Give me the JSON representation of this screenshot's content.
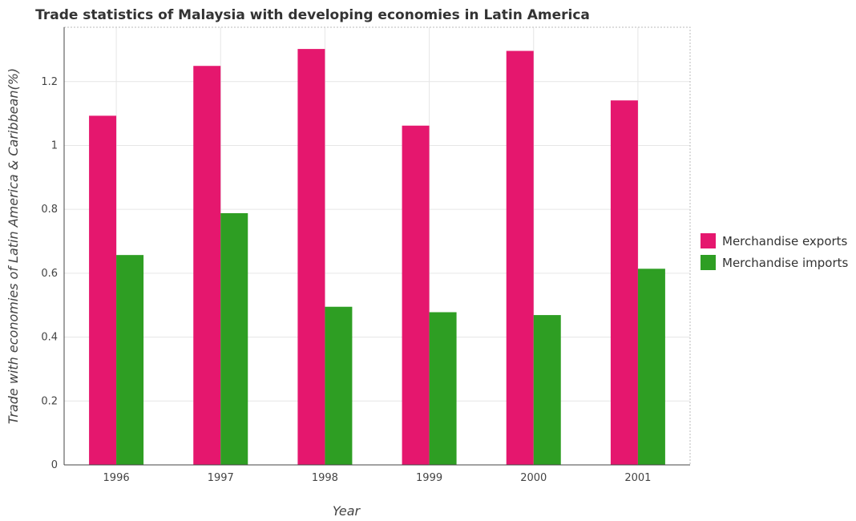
{
  "chart_data": {
    "type": "bar",
    "title": "Trade statistics of Malaysia with developing economies in Latin America",
    "xlabel": "Year",
    "ylabel": "Trade with economies of Latin America & Caribbean(%)",
    "categories": [
      "1996",
      "1997",
      "1998",
      "1999",
      "2000",
      "2001"
    ],
    "series": [
      {
        "name": "Merchandise exports",
        "color": "#e5176e",
        "values": [
          1.093,
          1.249,
          1.302,
          1.062,
          1.296,
          1.141
        ]
      },
      {
        "name": "Merchandise imports",
        "color": "#2e9e23",
        "values": [
          0.657,
          0.788,
          0.495,
          0.478,
          0.469,
          0.614
        ]
      }
    ],
    "ylim": [
      0,
      1.37
    ],
    "yticks": [
      0,
      0.2,
      0.4,
      0.6,
      0.8,
      1.0,
      1.2
    ],
    "ytick_labels": [
      "0",
      "0.2",
      "0.4",
      "0.6",
      "0.8",
      "1",
      "1.2"
    ],
    "grid": true,
    "legend_position": "right"
  }
}
